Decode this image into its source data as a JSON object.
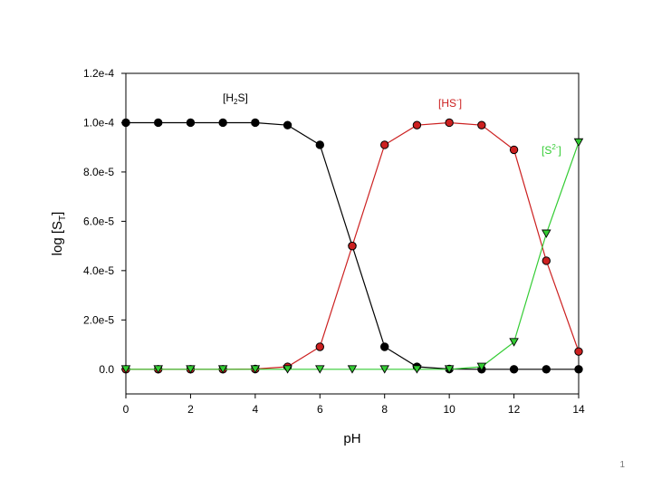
{
  "slide": {
    "number": "1"
  },
  "chart_data": {
    "type": "line",
    "title": "",
    "xlabel": "pH",
    "ylabel_parts": {
      "base": "log [S",
      "sub": "T",
      "close": "]"
    },
    "xlim": [
      0,
      14
    ],
    "ylim": [
      -1e-05,
      0.00012
    ],
    "x_ticks": [
      0,
      2,
      4,
      6,
      8,
      10,
      12,
      14
    ],
    "x_tick_labels": [
      "0",
      "2",
      "4",
      "6",
      "8",
      "10",
      "12",
      "14"
    ],
    "y_ticks": [
      0,
      2e-05,
      4e-05,
      6e-05,
      8e-05,
      0.0001,
      0.00012
    ],
    "y_tick_labels": [
      "0.0",
      "2.0e-5",
      "4.0e-5",
      "6.0e-5",
      "8.0e-5",
      "1.0e-4",
      "1.2e-4"
    ],
    "grid": false,
    "x": [
      0,
      1,
      2,
      3,
      4,
      5,
      6,
      7,
      8,
      9,
      10,
      11,
      12,
      13,
      14
    ],
    "series": [
      {
        "name": "H2S",
        "color": "#000000",
        "marker": "circle",
        "label_parts": {
          "open": "[H",
          "sub": "2",
          "close": "S]"
        },
        "values": [
          0.0001,
          0.0001,
          0.0001,
          0.0001,
          0.0001,
          9.9e-05,
          9.1e-05,
          5e-05,
          9.1e-06,
          1e-06,
          1e-07,
          0,
          0,
          0,
          0
        ]
      },
      {
        "name": "HS-",
        "color": "#cc2020",
        "marker": "circle",
        "label_parts": {
          "open": "[HS",
          "sup": "-",
          "close": "]"
        },
        "values": [
          0,
          0,
          0,
          0,
          1e-07,
          1e-06,
          9.1e-06,
          5e-05,
          9.1e-05,
          9.9e-05,
          0.0001,
          9.9e-05,
          8.9e-05,
          4.4e-05,
          7.2e-06
        ]
      },
      {
        "name": "S2-",
        "color": "#33cc33",
        "marker": "triangle-down",
        "label_parts": {
          "open": "[S",
          "sup": "2-",
          "close": "]"
        },
        "values": [
          0,
          0,
          0,
          0,
          0,
          0,
          0,
          0,
          0,
          0,
          0,
          1e-06,
          1.1e-05,
          5.5e-05,
          9.2e-05
        ]
      }
    ]
  }
}
